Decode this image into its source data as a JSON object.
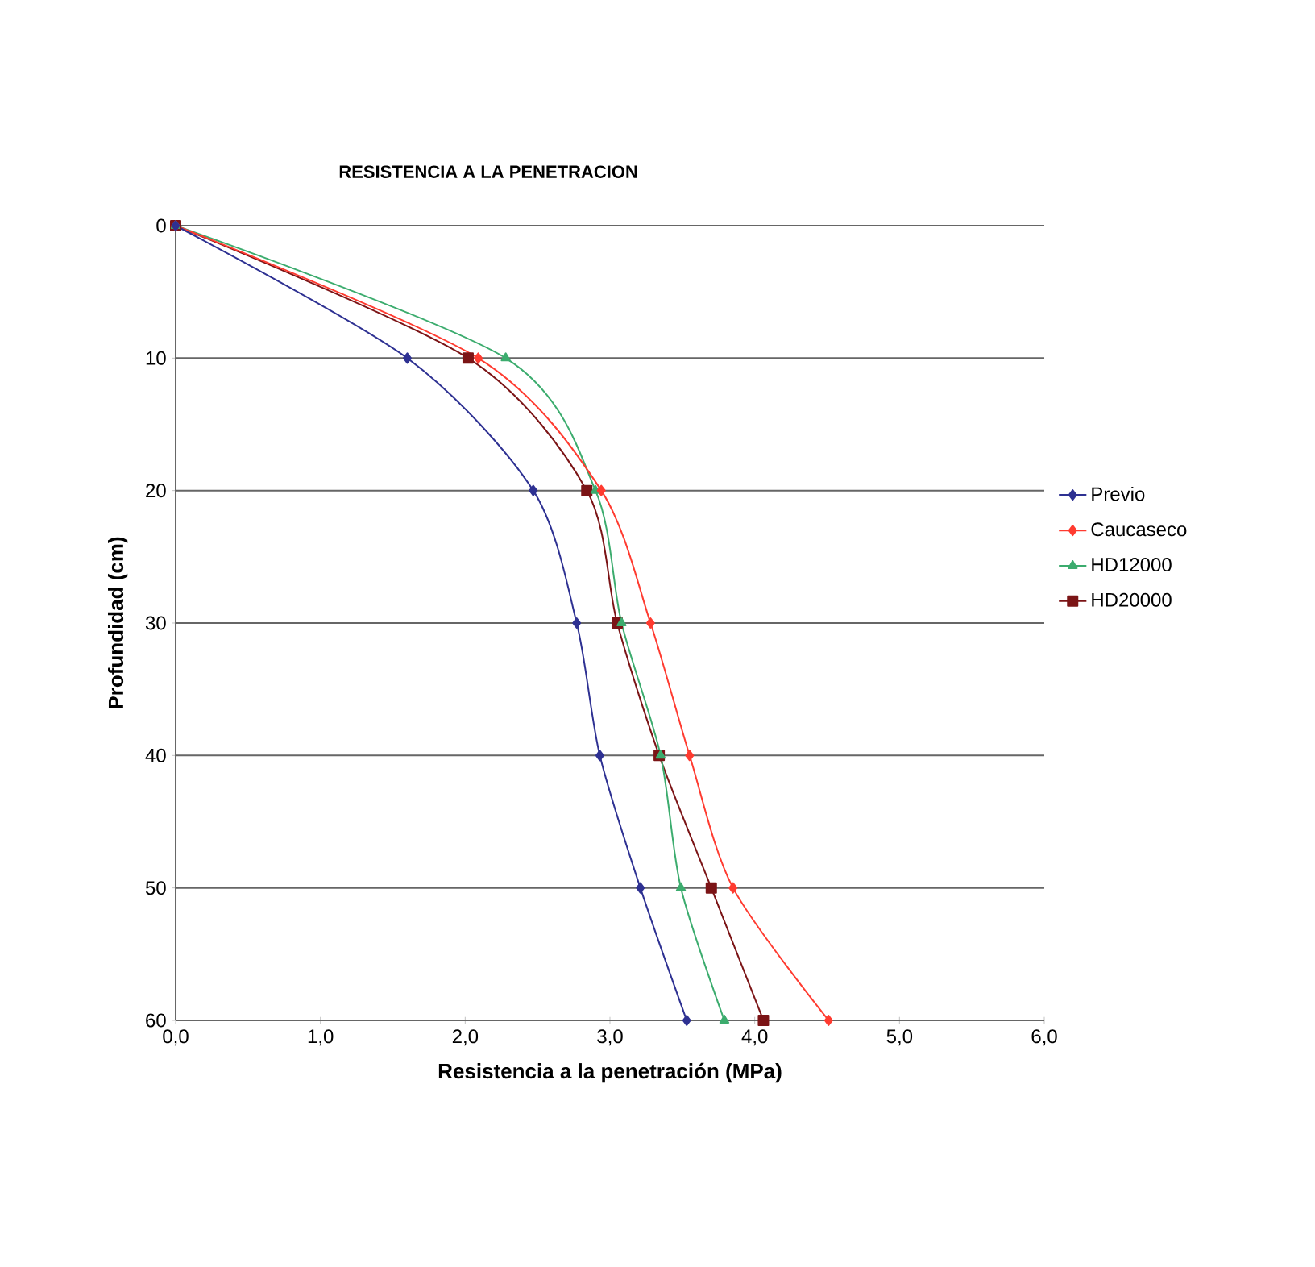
{
  "chart_data": {
    "type": "line",
    "title": "RESISTENCIA A LA PENETRACION",
    "xlabel": "Resistencia a la penetración (MPa)",
    "ylabel": "Profundidad (cm)",
    "xlim": [
      0,
      6
    ],
    "xticks": [
      {
        "value": 0,
        "label": "0,0"
      },
      {
        "value": 1,
        "label": "1,0"
      },
      {
        "value": 2,
        "label": "2,0"
      },
      {
        "value": 3,
        "label": "3,0"
      },
      {
        "value": 4,
        "label": "4,0"
      },
      {
        "value": 5,
        "label": "5,0"
      },
      {
        "value": 6,
        "label": "6,0"
      }
    ],
    "ylim": [
      60,
      0
    ],
    "yticks": [
      0,
      10,
      20,
      30,
      40,
      50,
      60
    ],
    "grid": "y",
    "legend": "right",
    "series": [
      {
        "name": "Previo",
        "color": "#2e3192",
        "marker": "diamond",
        "x": [
          0,
          1.6,
          2.47,
          2.77,
          2.93,
          3.21,
          3.53
        ],
        "values": [
          0,
          10,
          20,
          30,
          40,
          50,
          60
        ]
      },
      {
        "name": "Caucaseco",
        "color": "#ff3b30",
        "marker": "diamond",
        "x": [
          0,
          2.09,
          2.94,
          3.28,
          3.55,
          3.85,
          4.51
        ],
        "values": [
          0,
          10,
          20,
          30,
          40,
          50,
          60
        ]
      },
      {
        "name": "HD12000",
        "color": "#3cac6e",
        "marker": "triangle",
        "x": [
          0,
          2.28,
          2.9,
          3.08,
          3.35,
          3.49,
          3.79
        ],
        "values": [
          0,
          10,
          20,
          30,
          40,
          50,
          60
        ]
      },
      {
        "name": "HD20000",
        "color": "#7b1416",
        "marker": "square",
        "x": [
          0,
          2.02,
          2.84,
          3.05,
          3.34,
          3.7,
          4.06
        ],
        "values": [
          0,
          10,
          20,
          30,
          40,
          50,
          60
        ]
      }
    ]
  }
}
